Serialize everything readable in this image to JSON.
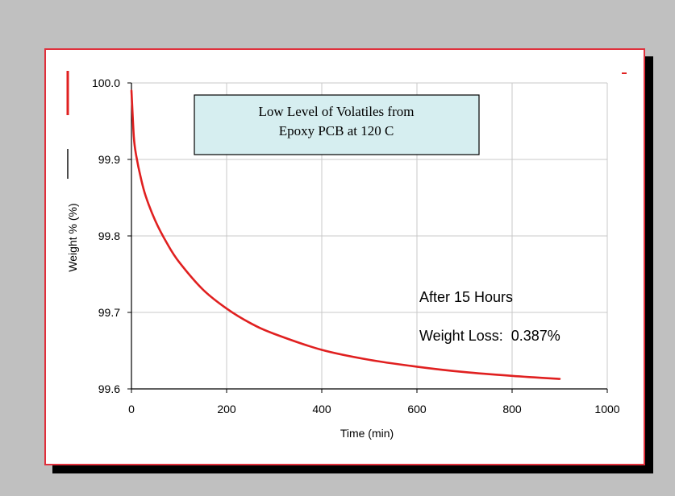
{
  "chart_data": {
    "type": "line",
    "title_lines": [
      "Low Level of Volatiles from",
      "Epoxy PCB at 120 C"
    ],
    "xlabel": "Time (min)",
    "ylabel": "Weight % (%)",
    "xlim": [
      0,
      1000
    ],
    "ylim": [
      99.6,
      100.0
    ],
    "x_ticks": [
      "0",
      "200",
      "400",
      "600",
      "800",
      "1000"
    ],
    "y_ticks": [
      "100.0",
      "99.9",
      "99.8",
      "99.7",
      "99.6"
    ],
    "grid": true,
    "series": [
      {
        "color": "#e02020",
        "x": [
          0,
          5,
          10,
          20,
          30,
          50,
          75,
          100,
          150,
          200,
          250,
          300,
          400,
          500,
          600,
          700,
          800,
          900
        ],
        "y": [
          99.99,
          99.93,
          99.905,
          99.875,
          99.852,
          99.82,
          99.79,
          99.766,
          99.73,
          99.705,
          99.686,
          99.672,
          99.651,
          99.638,
          99.629,
          99.622,
          99.617,
          99.613
        ]
      }
    ],
    "annotations": [
      "After 15 Hours",
      "Weight Loss:  0.387%"
    ],
    "colors": {
      "background": "#c0c0c0",
      "sheet_border": "#e0303c",
      "title_box_fill": "#d6eef0",
      "grid": "#c8c8c8",
      "line": "#e02020"
    }
  }
}
